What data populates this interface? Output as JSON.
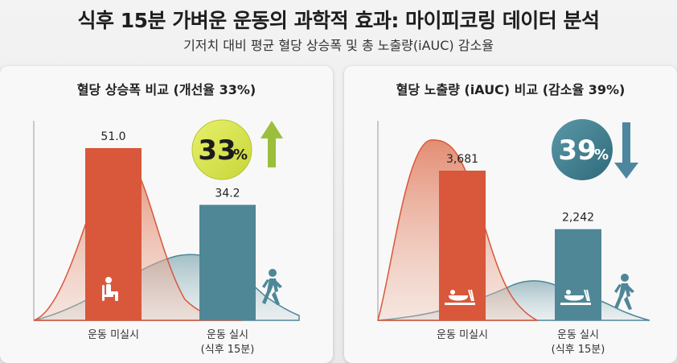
{
  "title": "식후 15분 가벼운 운동의 과학적 효과: 마이피코링 데이터 분석",
  "subtitle": "기저치 대비 평균 혈당 상승폭 및 총 노출량(iAUC) 감소율",
  "colors": {
    "bar_no_exercise": "#d9573a",
    "bar_exercise": "#4f8797",
    "badge_left": "#d6e44a",
    "badge_right": "#3f7d8d",
    "arrow_up": "#9bbf3a",
    "arrow_down": "#4e86a0"
  },
  "chart_data": [
    {
      "type": "bar",
      "title": "혈당 상승폭 비교 (개선율 33%)",
      "categories": [
        "운동 미실시",
        "운동 실시\n(식후 15분)"
      ],
      "values": [
        51.0,
        34.2
      ],
      "value_labels": [
        "51.0",
        "34.2"
      ],
      "badge": {
        "number": "33",
        "unit": "%",
        "direction": "up"
      },
      "icons": [
        "sitting-person-icon",
        "walking-person-icon"
      ]
    },
    {
      "type": "bar",
      "title": "혈당 노출량 (iAUC) 비교 (감소율 39%)",
      "categories": [
        "운동 미실시",
        "운동 실시\n(식후 15분)"
      ],
      "values": [
        3681,
        2242
      ],
      "value_labels": [
        "3,681",
        "2,242"
      ],
      "badge": {
        "number": "39",
        "unit": "%",
        "direction": "down"
      },
      "icons": [
        "meal-icon",
        "meal-icon",
        "walking-person-icon"
      ]
    }
  ]
}
